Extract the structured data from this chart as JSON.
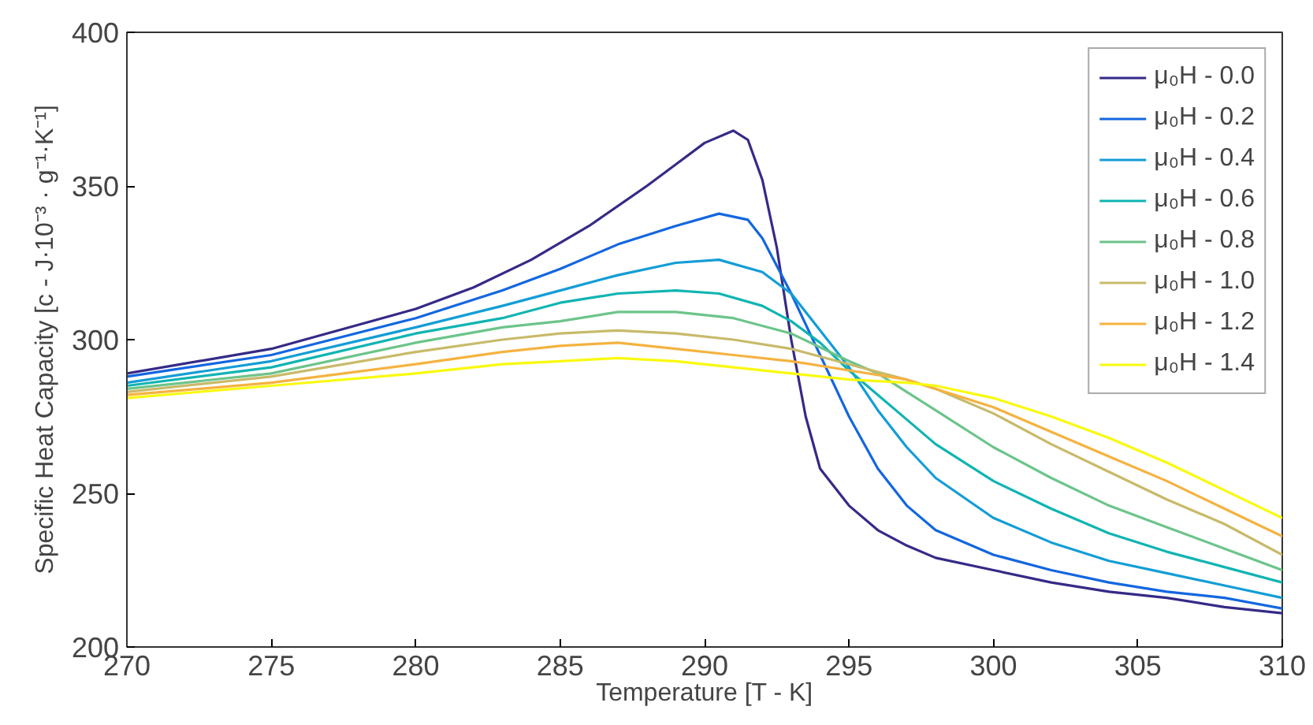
{
  "chart_data": {
    "type": "line",
    "xlabel": "Temperature [T - K]",
    "ylabel": "Specific Heat Capacity [c - J·10⁻³ · g⁻¹·K⁻¹]",
    "xlim": [
      270,
      310
    ],
    "ylim": [
      200,
      400
    ],
    "xticks": [
      270,
      275,
      280,
      285,
      290,
      295,
      300,
      305,
      310
    ],
    "yticks": [
      200,
      250,
      300,
      350,
      400
    ],
    "grid": false,
    "legend": "top right",
    "marker": "none",
    "line_style": "solid",
    "series": [
      {
        "name": "μ₀H - 0.0",
        "color": "#352a87",
        "x": [
          270,
          275,
          280,
          282,
          284,
          286,
          288,
          289,
          290,
          291,
          291.5,
          292,
          292.5,
          293,
          293.5,
          294,
          295,
          296,
          297,
          298,
          300,
          302,
          304,
          306,
          308,
          310
        ],
        "values": [
          289,
          297,
          310,
          317,
          326,
          337,
          350,
          357,
          364,
          368,
          365,
          352,
          330,
          300,
          275,
          258,
          246,
          238,
          233,
          229,
          225,
          221,
          218,
          216,
          213,
          211
        ]
      },
      {
        "name": "μ₀H - 0.2",
        "color": "#1366e0",
        "x": [
          270,
          275,
          280,
          283,
          285,
          287,
          289,
          290.5,
          291.5,
          292,
          293,
          294,
          295,
          296,
          297,
          298,
          300,
          302,
          304,
          306,
          308,
          310
        ],
        "values": [
          288,
          295,
          307,
          316,
          323,
          331,
          337,
          341,
          339,
          333,
          315,
          295,
          275,
          258,
          246,
          238,
          230,
          225,
          221,
          218,
          216,
          212.5
        ]
      },
      {
        "name": "μ₀H - 0.4",
        "color": "#139dd6",
        "x": [
          270,
          275,
          280,
          283,
          285,
          287,
          289,
          290.5,
          292,
          293,
          294,
          295,
          296,
          297,
          298,
          300,
          302,
          304,
          306,
          308,
          310
        ],
        "values": [
          286,
          293,
          304,
          311,
          316,
          321,
          325,
          326,
          322,
          315,
          303,
          291,
          277,
          265,
          255,
          242,
          234,
          228,
          224,
          220,
          216
        ]
      },
      {
        "name": "μ₀H - 0.6",
        "color": "#10b4b2",
        "x": [
          270,
          275,
          280,
          283,
          285,
          287,
          289,
          290.5,
          292,
          293,
          294,
          295,
          296,
          297,
          298,
          300,
          302,
          304,
          306,
          308,
          310
        ],
        "values": [
          285,
          291,
          302,
          307,
          312,
          315,
          316,
          315,
          311,
          306,
          299,
          290,
          282,
          274,
          266,
          254,
          245,
          237,
          231,
          226,
          221
        ]
      },
      {
        "name": "μ₀H - 0.8",
        "color": "#6cc48a",
        "x": [
          270,
          275,
          280,
          283,
          285,
          287,
          289,
          291,
          293,
          295,
          296,
          297,
          298,
          300,
          302,
          304,
          306,
          308,
          310
        ],
        "values": [
          284,
          289,
          299,
          304,
          306,
          309,
          309,
          307,
          302,
          293,
          289,
          283,
          277,
          265,
          255,
          246,
          239,
          232,
          225
        ]
      },
      {
        "name": "μ₀H - 1.0",
        "color": "#c8ba6a",
        "x": [
          270,
          275,
          280,
          283,
          285,
          287,
          289,
          291,
          293,
          295,
          297,
          298,
          300,
          302,
          304,
          306,
          308,
          310
        ],
        "values": [
          283,
          288,
          296,
          300,
          302,
          303,
          302,
          300,
          297,
          292,
          287,
          284,
          276,
          266,
          257,
          248,
          240,
          230
        ]
      },
      {
        "name": "μ₀H - 1.2",
        "color": "#f5b240",
        "x": [
          270,
          275,
          280,
          283,
          285,
          287,
          289,
          291,
          293,
          295,
          297,
          298,
          300,
          302,
          304,
          306,
          308,
          310
        ],
        "values": [
          282,
          286,
          292,
          296,
          298,
          299,
          297,
          295,
          293,
          290,
          287,
          284,
          278,
          270,
          262,
          254,
          245,
          236
        ]
      },
      {
        "name": "μ₀H - 1.4",
        "color": "#f9f90e",
        "x": [
          270,
          275,
          280,
          283,
          285,
          287,
          289,
          291,
          293,
          295,
          297,
          298,
          300,
          302,
          304,
          306,
          308,
          310
        ],
        "values": [
          281,
          285,
          289,
          292,
          293,
          294,
          293,
          291,
          289,
          287,
          286,
          285,
          281,
          275,
          268,
          260,
          251,
          242
        ]
      }
    ]
  }
}
